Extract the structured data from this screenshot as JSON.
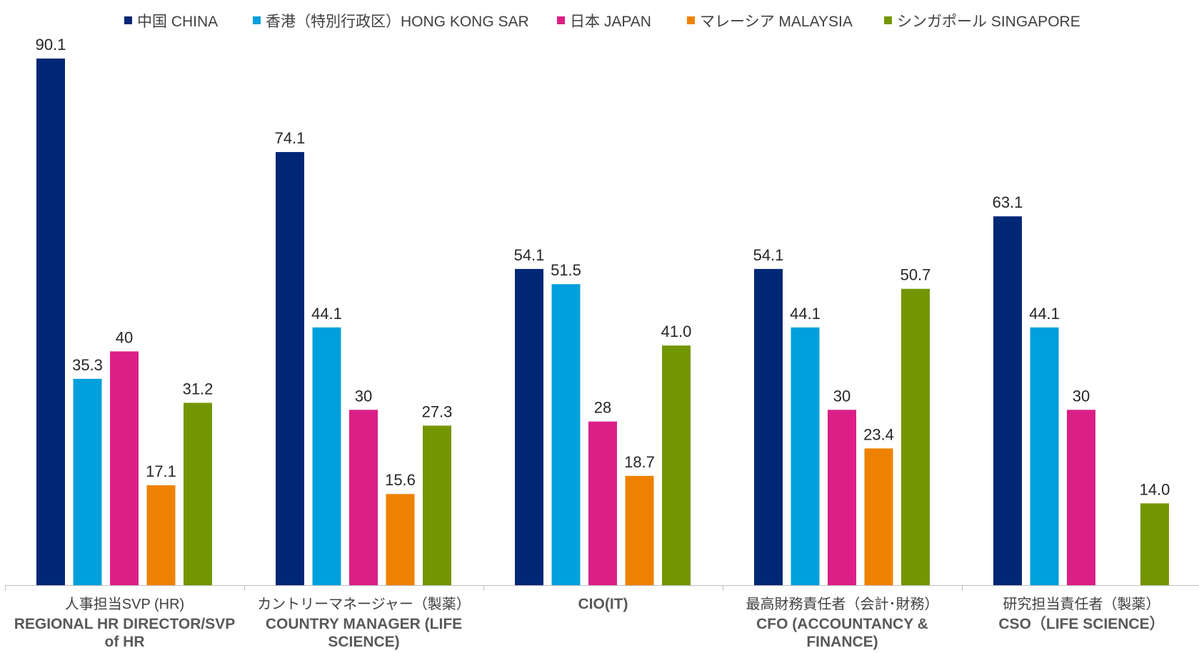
{
  "chart_data": {
    "type": "bar",
    "title": "",
    "xlabel": "",
    "ylabel": "",
    "ylim": [
      0,
      100
    ],
    "grid": false,
    "legend_position": "top",
    "categories": [
      {
        "line1": "人事担当SVP (HR)",
        "line2": "REGIONAL HR DIRECTOR/SVP",
        "line3": "of HR"
      },
      {
        "line1": "カントリーマネージャー（製薬）",
        "line2": "COUNTRY MANAGER (LIFE",
        "line3": "SCIENCE)"
      },
      {
        "line1": "CIO(IT)",
        "line2": "",
        "line3": ""
      },
      {
        "line1": "最高財務責任者（会計･財務）",
        "line2": "CFO (ACCOUNTANCY &",
        "line3": "FINANCE)"
      },
      {
        "line1": "研究担当責任者（製薬）",
        "line2": "CSO（LIFE SCIENCE）",
        "line3": ""
      }
    ],
    "series": [
      {
        "name": "中国 CHINA",
        "color": "#002776",
        "values": [
          90.1,
          74.1,
          54.1,
          54.1,
          63.1
        ],
        "labels": [
          "90.1",
          "74.1",
          "54.1",
          "54.1",
          "63.1"
        ]
      },
      {
        "name": "香港（特別行政区）HONG KONG SAR",
        "color": "#00A0DC",
        "values": [
          35.3,
          44.1,
          51.5,
          44.1,
          44.1
        ],
        "labels": [
          "35.3",
          "44.1",
          "51.5",
          "44.1",
          "44.1"
        ]
      },
      {
        "name": "日本 JAPAN",
        "color": "#DB1F86",
        "values": [
          40,
          30,
          28,
          30,
          30
        ],
        "labels": [
          "40",
          "30",
          "28",
          "30",
          "30"
        ]
      },
      {
        "name": "マレーシア MALAYSIA",
        "color": "#EE8200",
        "values": [
          17.1,
          15.6,
          18.7,
          23.4,
          null
        ],
        "labels": [
          "17.1",
          "15.6",
          "18.7",
          "23.4",
          ""
        ]
      },
      {
        "name": "シンガポール SINGAPORE",
        "color": "#739600",
        "values": [
          31.2,
          27.3,
          41.0,
          50.7,
          14.0
        ],
        "labels": [
          "31.2",
          "27.3",
          "41.0",
          "50.7",
          "14.0"
        ]
      }
    ]
  }
}
